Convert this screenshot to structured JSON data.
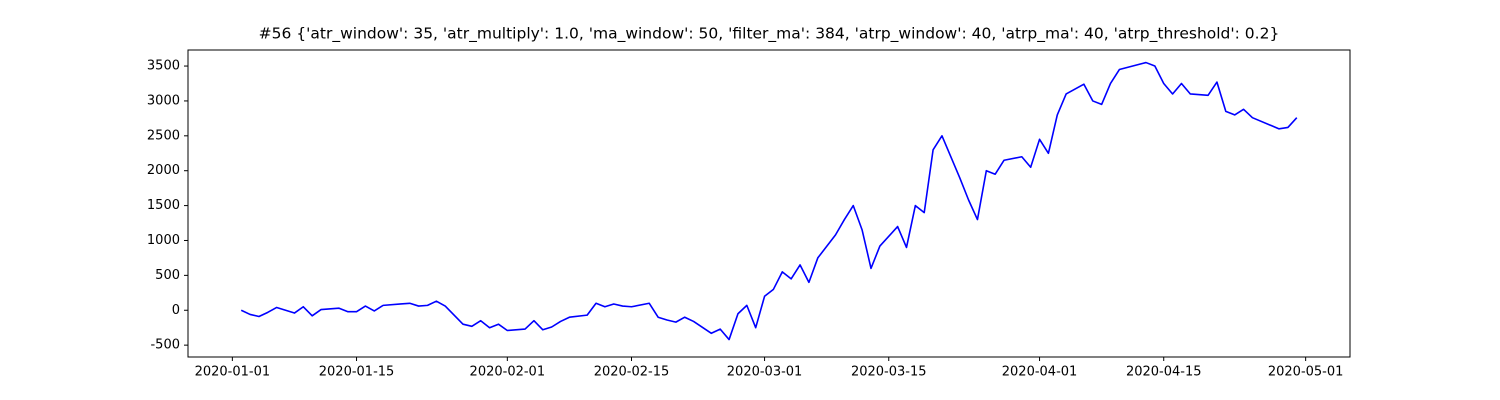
{
  "chart_data": {
    "type": "line",
    "title": "#56 {'atr_window': 35, 'atr_multiply': 1.0, 'ma_window': 50, 'filter_ma': 384, 'atrp_window': 40, 'atrp_ma': 40, 'atrp_threshold': 0.2}",
    "x": [
      "2020-01-02",
      "2020-01-03",
      "2020-01-04",
      "2020-01-05",
      "2020-01-06",
      "2020-01-07",
      "2020-01-08",
      "2020-01-09",
      "2020-01-10",
      "2020-01-11",
      "2020-01-13",
      "2020-01-14",
      "2020-01-15",
      "2020-01-16",
      "2020-01-17",
      "2020-01-18",
      "2020-01-20",
      "2020-01-21",
      "2020-01-22",
      "2020-01-23",
      "2020-01-24",
      "2020-01-25",
      "2020-01-27",
      "2020-01-28",
      "2020-01-29",
      "2020-01-30",
      "2020-01-31",
      "2020-02-01",
      "2020-02-03",
      "2020-02-04",
      "2020-02-05",
      "2020-02-06",
      "2020-02-07",
      "2020-02-08",
      "2020-02-10",
      "2020-02-11",
      "2020-02-12",
      "2020-02-13",
      "2020-02-14",
      "2020-02-15",
      "2020-02-17",
      "2020-02-18",
      "2020-02-19",
      "2020-02-20",
      "2020-02-21",
      "2020-02-22",
      "2020-02-24",
      "2020-02-25",
      "2020-02-26",
      "2020-02-27",
      "2020-02-28",
      "2020-02-29",
      "2020-03-01",
      "2020-03-02",
      "2020-03-03",
      "2020-03-04",
      "2020-03-05",
      "2020-03-06",
      "2020-03-07",
      "2020-03-09",
      "2020-03-10",
      "2020-03-11",
      "2020-03-12",
      "2020-03-13",
      "2020-03-14",
      "2020-03-16",
      "2020-03-17",
      "2020-03-18",
      "2020-03-19",
      "2020-03-20",
      "2020-03-21",
      "2020-03-23",
      "2020-03-24",
      "2020-03-25",
      "2020-03-26",
      "2020-03-27",
      "2020-03-28",
      "2020-03-30",
      "2020-03-31",
      "2020-04-01",
      "2020-04-02",
      "2020-04-03",
      "2020-04-04",
      "2020-04-06",
      "2020-04-07",
      "2020-04-08",
      "2020-04-09",
      "2020-04-10",
      "2020-04-13",
      "2020-04-14",
      "2020-04-15",
      "2020-04-16",
      "2020-04-17",
      "2020-04-18",
      "2020-04-20",
      "2020-04-21",
      "2020-04-22",
      "2020-04-23",
      "2020-04-24",
      "2020-04-25",
      "2020-04-28",
      "2020-04-29",
      "2020-04-30"
    ],
    "series": [
      {
        "color": "#0000ff",
        "values": [
          0,
          -60,
          -90,
          -30,
          40,
          0,
          -40,
          50,
          -80,
          10,
          30,
          -20,
          -20,
          60,
          -10,
          70,
          90,
          100,
          60,
          70,
          130,
          60,
          -200,
          -230,
          -150,
          -250,
          -200,
          -290,
          -270,
          -150,
          -280,
          -240,
          -160,
          -100,
          -70,
          100,
          50,
          90,
          60,
          50,
          100,
          -100,
          -140,
          -170,
          -100,
          -160,
          -330,
          -270,
          -420,
          -50,
          70,
          -250,
          200,
          300,
          550,
          450,
          650,
          400,
          750,
          1080,
          1300,
          1500,
          1150,
          600,
          920,
          1200,
          900,
          1500,
          1400,
          2300,
          2500,
          1900,
          1580,
          1300,
          2000,
          1950,
          2150,
          2200,
          2050,
          2450,
          2250,
          2800,
          3100,
          3240,
          3000,
          2950,
          3250,
          3450,
          3550,
          3500,
          3250,
          3100,
          3250,
          3100,
          3080,
          3270,
          2850,
          2800,
          2880,
          2760,
          2600,
          2620,
          2760
        ]
      }
    ],
    "xlim": [
      "2019-12-27",
      "2020-05-06"
    ],
    "xticks": [
      "2020-01-01",
      "2020-01-15",
      "2020-02-01",
      "2020-02-15",
      "2020-03-01",
      "2020-03-15",
      "2020-04-01",
      "2020-04-15",
      "2020-05-01"
    ],
    "ylim": [
      -670,
      3730
    ],
    "yticks": [
      -500,
      0,
      500,
      1000,
      1500,
      2000,
      2500,
      3000,
      3500
    ]
  }
}
